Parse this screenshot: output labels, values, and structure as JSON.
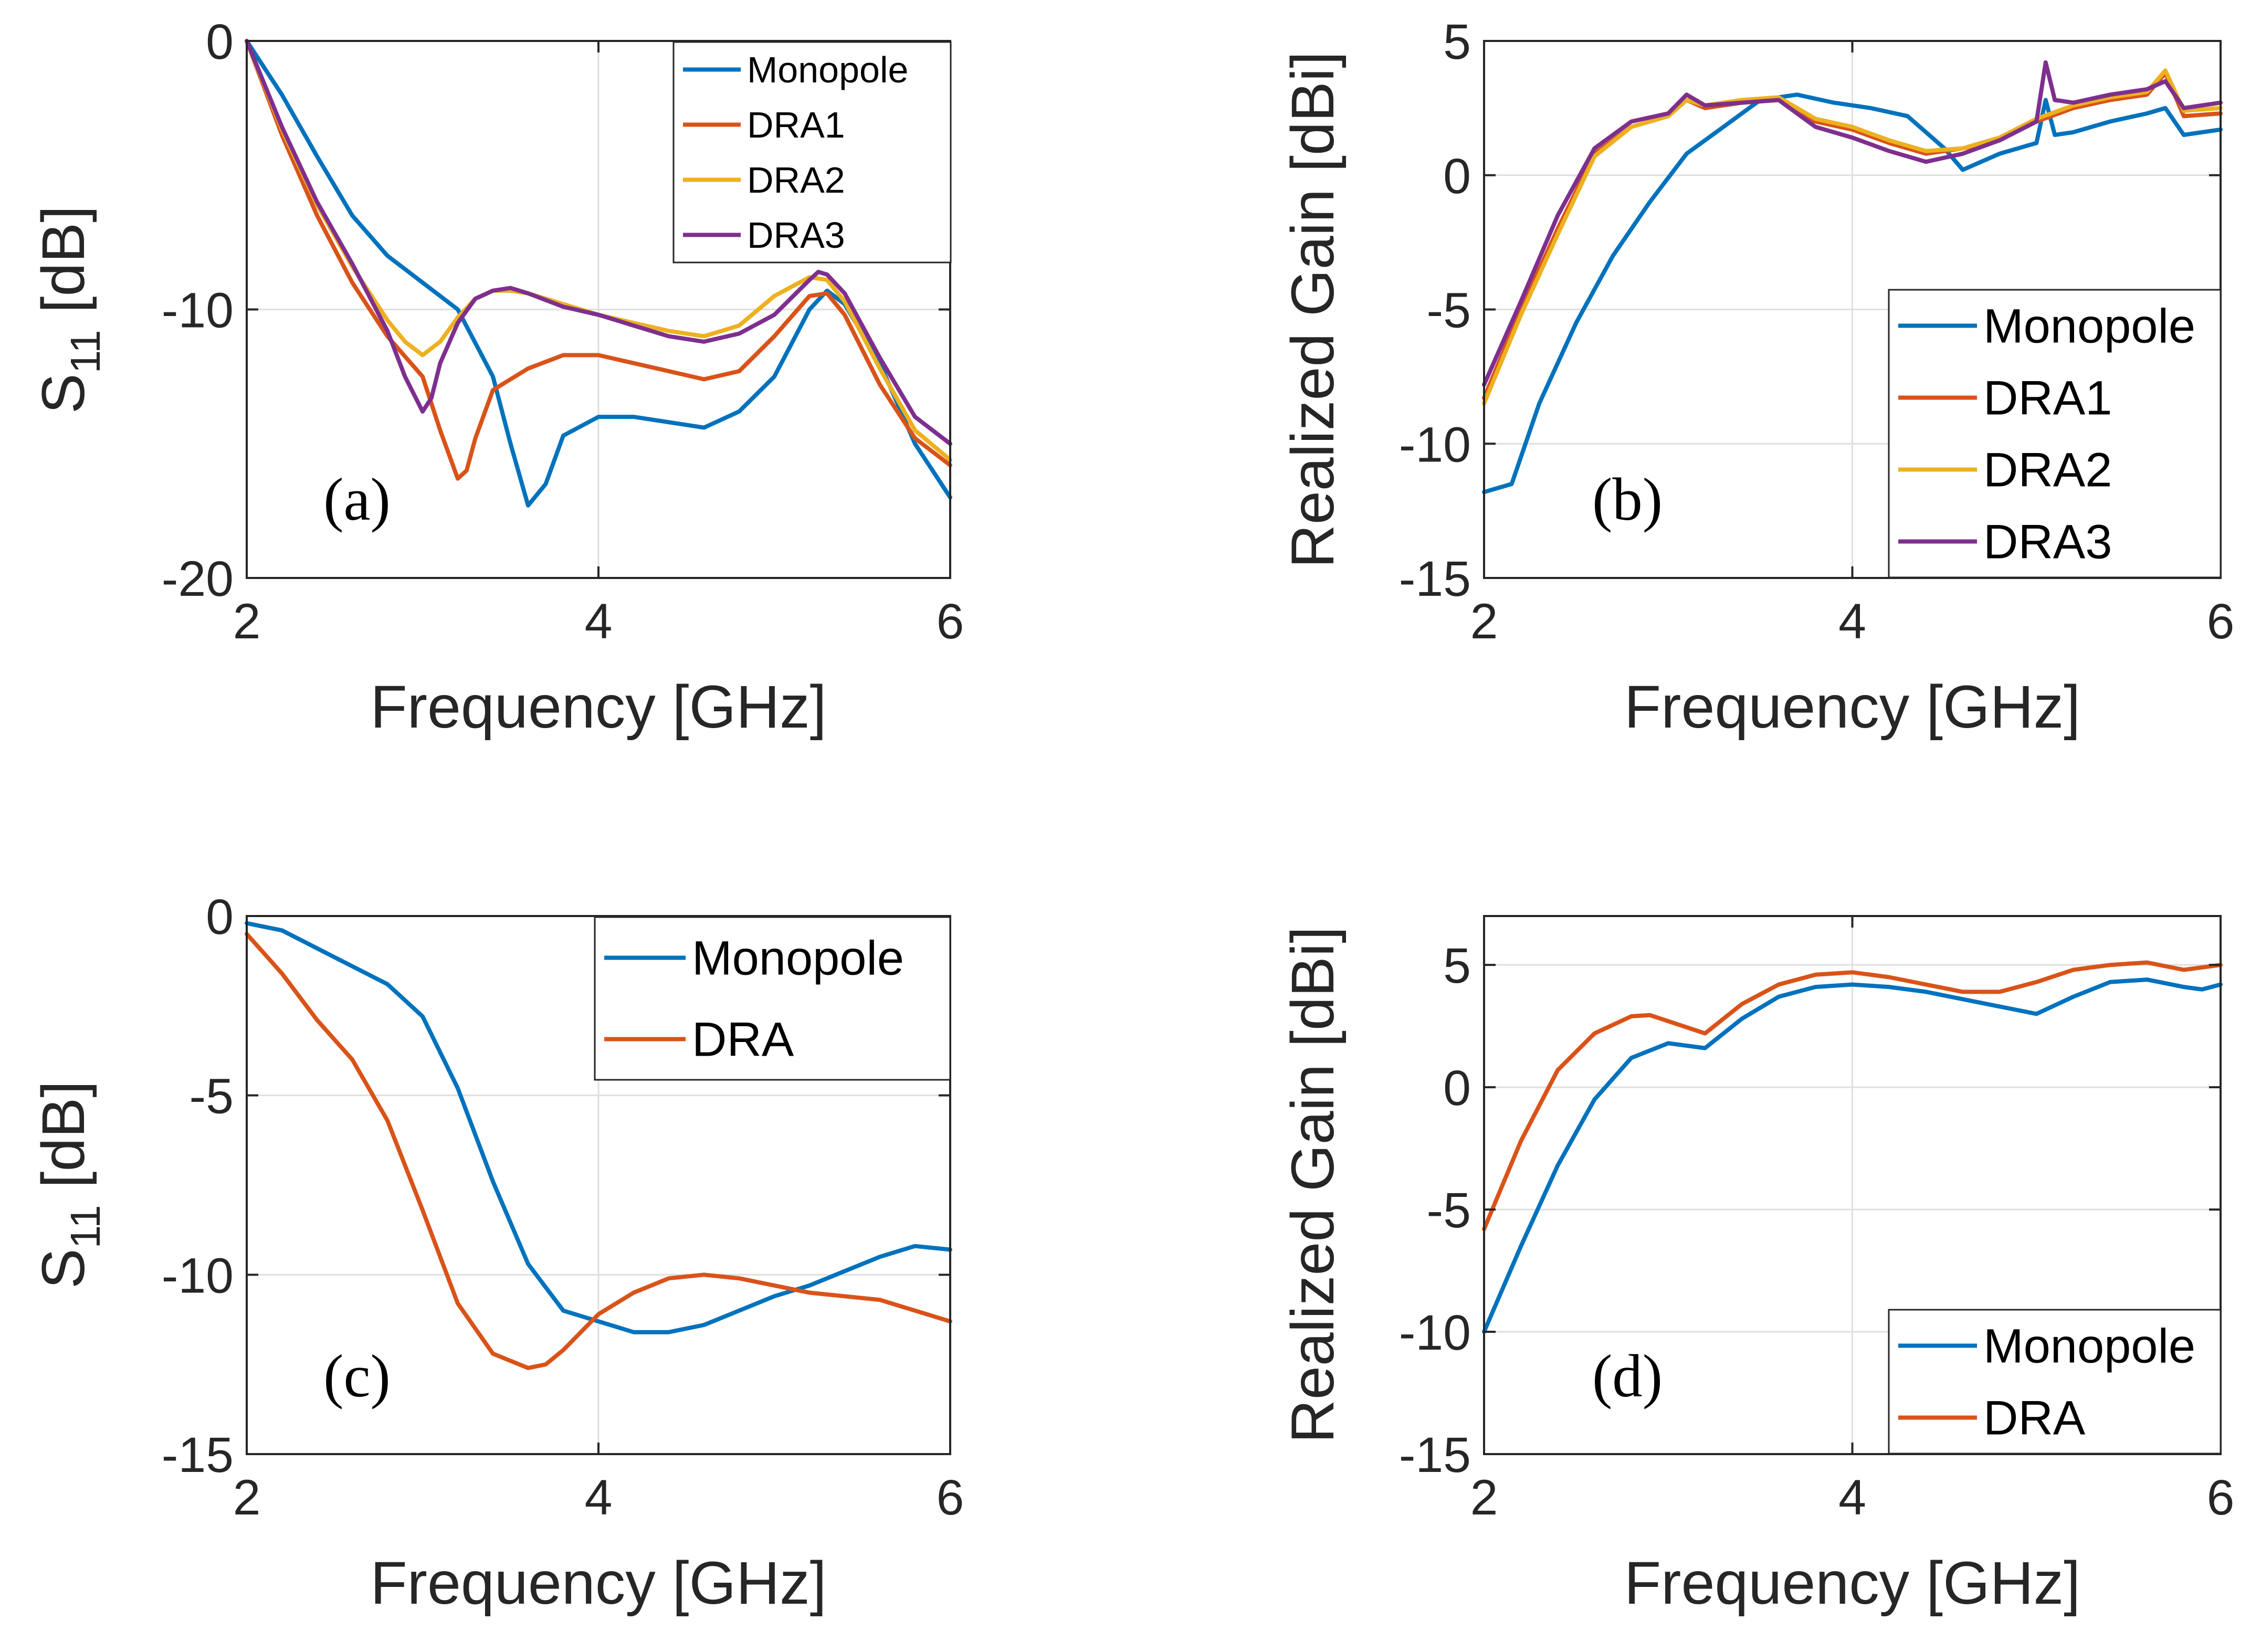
{
  "colors": {
    "Monopole": "#0072BD",
    "DRA1": "#D95319",
    "DRA2": "#EDB120",
    "DRA3": "#7E2F8E",
    "DRA": "#D95319",
    "grid": "#DFDFDF",
    "axis": "#262626"
  },
  "chart_data": [
    {
      "type": "line",
      "panel_label": "(a)",
      "xlabel": "Frequency [GHz]",
      "ylabel": "S",
      "ylabel_sub": "11",
      "ylabel_unit": " [dB]",
      "xlim": [
        2,
        6
      ],
      "ylim": [
        -20,
        0
      ],
      "xticks": [
        2,
        4,
        6
      ],
      "yticks": [
        0,
        -10,
        -20
      ],
      "xtick_labels": [
        "2",
        "4",
        "6"
      ],
      "ytick_labels": [
        "0",
        "-10",
        "-20"
      ],
      "grid": true,
      "legend_position": "top-right",
      "series": [
        {
          "name": "Monopole",
          "x": [
            2,
            2.2,
            2.4,
            2.6,
            2.8,
            3,
            3.2,
            3.4,
            3.5,
            3.6,
            3.7,
            3.8,
            4,
            4.2,
            4.4,
            4.6,
            4.8,
            5,
            5.2,
            5.3,
            5.4,
            5.6,
            5.8,
            6
          ],
          "y": [
            0,
            -2,
            -4.3,
            -6.5,
            -8,
            -9,
            -10,
            -12.5,
            -15,
            -17.3,
            -16.5,
            -14.7,
            -14,
            -14,
            -14.2,
            -14.4,
            -13.8,
            -12.5,
            -10,
            -9.3,
            -9.8,
            -12,
            -15,
            -17
          ]
        },
        {
          "name": "DRA1",
          "x": [
            2,
            2.2,
            2.4,
            2.6,
            2.8,
            3,
            3.1,
            3.2,
            3.25,
            3.3,
            3.4,
            3.6,
            3.8,
            4,
            4.2,
            4.4,
            4.6,
            4.8,
            5,
            5.2,
            5.3,
            5.4,
            5.6,
            5.8,
            6
          ],
          "y": [
            0,
            -3.5,
            -6.5,
            -9,
            -11,
            -12.5,
            -14.5,
            -16.3,
            -16,
            -14.8,
            -13,
            -12.2,
            -11.7,
            -11.7,
            -12,
            -12.3,
            -12.6,
            -12.3,
            -11,
            -9.5,
            -9.4,
            -10.2,
            -12.8,
            -14.8,
            -15.8
          ]
        },
        {
          "name": "DRA2",
          "x": [
            2,
            2.2,
            2.4,
            2.6,
            2.8,
            2.9,
            3,
            3.1,
            3.2,
            3.3,
            3.4,
            3.5,
            3.6,
            3.8,
            4,
            4.2,
            4.4,
            4.6,
            4.8,
            5,
            5.2,
            5.3,
            5.4,
            5.6,
            5.8,
            6
          ],
          "y": [
            0,
            -3.3,
            -6.1,
            -8.4,
            -10.4,
            -11.2,
            -11.7,
            -11.2,
            -10.3,
            -9.6,
            -9.3,
            -9.3,
            -9.4,
            -9.8,
            -10.2,
            -10.5,
            -10.8,
            -11,
            -10.6,
            -9.5,
            -8.8,
            -8.9,
            -9.7,
            -12.2,
            -14.5,
            -15.6
          ]
        },
        {
          "name": "DRA3",
          "x": [
            2,
            2.2,
            2.4,
            2.6,
            2.8,
            2.9,
            3,
            3.05,
            3.1,
            3.2,
            3.3,
            3.4,
            3.5,
            3.6,
            3.8,
            4,
            4.2,
            4.4,
            4.6,
            4.8,
            5,
            5.2,
            5.25,
            5.3,
            5.4,
            5.6,
            5.8,
            6
          ],
          "y": [
            0,
            -3.2,
            -6,
            -8.3,
            -10.8,
            -12.5,
            -13.8,
            -13.3,
            -12,
            -10.5,
            -9.6,
            -9.3,
            -9.2,
            -9.4,
            -9.9,
            -10.2,
            -10.6,
            -11,
            -11.2,
            -10.9,
            -10.2,
            -8.9,
            -8.6,
            -8.7,
            -9.4,
            -11.8,
            -14,
            -15
          ]
        }
      ]
    },
    {
      "type": "line",
      "panel_label": "(b)",
      "xlabel": "Frequency [GHz]",
      "ylabel": "Realized Gain [dBi]",
      "xlim": [
        2,
        6
      ],
      "ylim": [
        -15,
        5
      ],
      "xticks": [
        2,
        4,
        6
      ],
      "yticks": [
        5,
        0,
        -5,
        -10,
        -15
      ],
      "xtick_labels": [
        "2",
        "4",
        "6"
      ],
      "ytick_labels": [
        "5",
        "0",
        "-5",
        "-10",
        "-15"
      ],
      "grid": true,
      "legend_position": "bottom-right",
      "series": [
        {
          "name": "Monopole",
          "x": [
            2,
            2.15,
            2.3,
            2.5,
            2.7,
            2.9,
            3.1,
            3.3,
            3.5,
            3.7,
            3.9,
            4.1,
            4.3,
            4.5,
            4.6,
            4.8,
            5,
            5.05,
            5.1,
            5.2,
            5.4,
            5.6,
            5.7,
            5.8,
            6
          ],
          "y": [
            -11.8,
            -11.5,
            -8.5,
            -5.5,
            -3,
            -1,
            0.8,
            1.8,
            2.8,
            3,
            2.7,
            2.5,
            2.2,
            1,
            0.2,
            0.8,
            1.2,
            2.8,
            1.5,
            1.6,
            2,
            2.3,
            2.5,
            1.5,
            1.7
          ]
        },
        {
          "name": "DRA1",
          "x": [
            2,
            2.2,
            2.4,
            2.6,
            2.8,
            3,
            3.1,
            3.2,
            3.4,
            3.6,
            3.8,
            4,
            4.2,
            4.4,
            4.6,
            4.8,
            5,
            5.2,
            5.4,
            5.6,
            5.7,
            5.8,
            6
          ],
          "y": [
            -8.3,
            -5,
            -2,
            0.8,
            1.8,
            2.2,
            2.8,
            2.5,
            2.7,
            2.8,
            2,
            1.7,
            1.2,
            0.8,
            1,
            1.3,
            2,
            2.5,
            2.8,
            3,
            3.8,
            2.2,
            2.3
          ]
        },
        {
          "name": "DRA2",
          "x": [
            2,
            2.2,
            2.4,
            2.6,
            2.8,
            3,
            3.1,
            3.2,
            3.4,
            3.6,
            3.8,
            4,
            4.2,
            4.4,
            4.6,
            4.8,
            5,
            5.2,
            5.4,
            5.6,
            5.7,
            5.8,
            6
          ],
          "y": [
            -8.5,
            -5.2,
            -2.2,
            0.7,
            1.8,
            2.2,
            2.8,
            2.6,
            2.8,
            2.9,
            2.1,
            1.8,
            1.3,
            0.9,
            1,
            1.4,
            2.1,
            2.6,
            2.9,
            3.1,
            3.9,
            2.4,
            2.5
          ]
        },
        {
          "name": "DRA3",
          "x": [
            2,
            2.2,
            2.4,
            2.6,
            2.8,
            3,
            3.1,
            3.2,
            3.4,
            3.6,
            3.8,
            4,
            4.2,
            4.4,
            4.6,
            4.8,
            5,
            5.05,
            5.1,
            5.2,
            5.4,
            5.6,
            5.7,
            5.8,
            6
          ],
          "y": [
            -7.8,
            -4.7,
            -1.5,
            1,
            2,
            2.3,
            3,
            2.6,
            2.7,
            2.8,
            1.8,
            1.4,
            0.9,
            0.5,
            0.8,
            1.3,
            2,
            4.2,
            2.8,
            2.7,
            3,
            3.2,
            3.5,
            2.5,
            2.7
          ]
        }
      ]
    },
    {
      "type": "line",
      "panel_label": "(c)",
      "xlabel": "Frequency [GHz]",
      "ylabel": "S",
      "ylabel_sub": "11",
      "ylabel_unit": " [dB]",
      "xlim": [
        2,
        6
      ],
      "ylim": [
        -15,
        0
      ],
      "xticks": [
        2,
        4,
        6
      ],
      "yticks": [
        0,
        -5,
        -10,
        -15
      ],
      "xtick_labels": [
        "2",
        "4",
        "6"
      ],
      "ytick_labels": [
        "0",
        "-5",
        "-10",
        "-15"
      ],
      "grid": true,
      "legend_position": "top-right",
      "series": [
        {
          "name": "Monopole",
          "x": [
            2,
            2.2,
            2.4,
            2.6,
            2.8,
            3,
            3.2,
            3.4,
            3.6,
            3.8,
            4,
            4.2,
            4.4,
            4.6,
            4.8,
            5,
            5.2,
            5.4,
            5.6,
            5.8,
            6
          ],
          "y": [
            -0.2,
            -0.4,
            -0.9,
            -1.4,
            -1.9,
            -2.8,
            -4.8,
            -7.4,
            -9.7,
            -11,
            -11.3,
            -11.6,
            -11.6,
            -11.4,
            -11,
            -10.6,
            -10.3,
            -9.9,
            -9.5,
            -9.2,
            -9.3
          ]
        },
        {
          "name": "DRA",
          "x": [
            2,
            2.2,
            2.4,
            2.6,
            2.8,
            3,
            3.2,
            3.4,
            3.6,
            3.7,
            3.8,
            4,
            4.2,
            4.4,
            4.6,
            4.8,
            5,
            5.2,
            5.4,
            5.6,
            5.8,
            6
          ],
          "y": [
            -0.5,
            -1.6,
            -2.9,
            -4,
            -5.7,
            -8.2,
            -10.8,
            -12.2,
            -12.6,
            -12.5,
            -12.1,
            -11.1,
            -10.5,
            -10.1,
            -10,
            -10.1,
            -10.3,
            -10.5,
            -10.6,
            -10.7,
            -11,
            -11.3
          ]
        }
      ]
    },
    {
      "type": "line",
      "panel_label": "(d)",
      "xlabel": "Frequency [GHz]",
      "ylabel": "Realized Gain [dBi]",
      "xlim": [
        2,
        6
      ],
      "ylim": [
        -15,
        7
      ],
      "xticks": [
        2,
        4,
        6
      ],
      "yticks": [
        5,
        0,
        -5,
        -10,
        -15
      ],
      "xtick_labels": [
        "2",
        "4",
        "6"
      ],
      "ytick_labels": [
        "5",
        "0",
        "-5",
        "-10",
        "-15"
      ],
      "grid": true,
      "legend_position": "bottom-right",
      "series": [
        {
          "name": "Monopole",
          "x": [
            2,
            2.2,
            2.4,
            2.6,
            2.8,
            3,
            3.2,
            3.4,
            3.6,
            3.8,
            4,
            4.2,
            4.4,
            4.6,
            4.8,
            5,
            5.2,
            5.4,
            5.6,
            5.8,
            5.9,
            6
          ],
          "y": [
            -10,
            -6.5,
            -3.2,
            -0.5,
            1.2,
            1.8,
            1.6,
            2.8,
            3.7,
            4.1,
            4.2,
            4.1,
            3.9,
            3.6,
            3.3,
            3,
            3.7,
            4.3,
            4.4,
            4.1,
            4,
            4.2
          ]
        },
        {
          "name": "DRA",
          "x": [
            2,
            2.2,
            2.4,
            2.6,
            2.8,
            2.9,
            3,
            3.2,
            3.4,
            3.6,
            3.8,
            4,
            4.2,
            4.4,
            4.6,
            4.8,
            5,
            5.2,
            5.4,
            5.6,
            5.8,
            6
          ],
          "y": [
            -5.8,
            -2.2,
            0.7,
            2.2,
            2.9,
            2.95,
            2.7,
            2.2,
            3.4,
            4.2,
            4.6,
            4.7,
            4.5,
            4.2,
            3.9,
            3.9,
            4.3,
            4.8,
            5,
            5.1,
            4.8,
            5
          ]
        }
      ]
    }
  ]
}
